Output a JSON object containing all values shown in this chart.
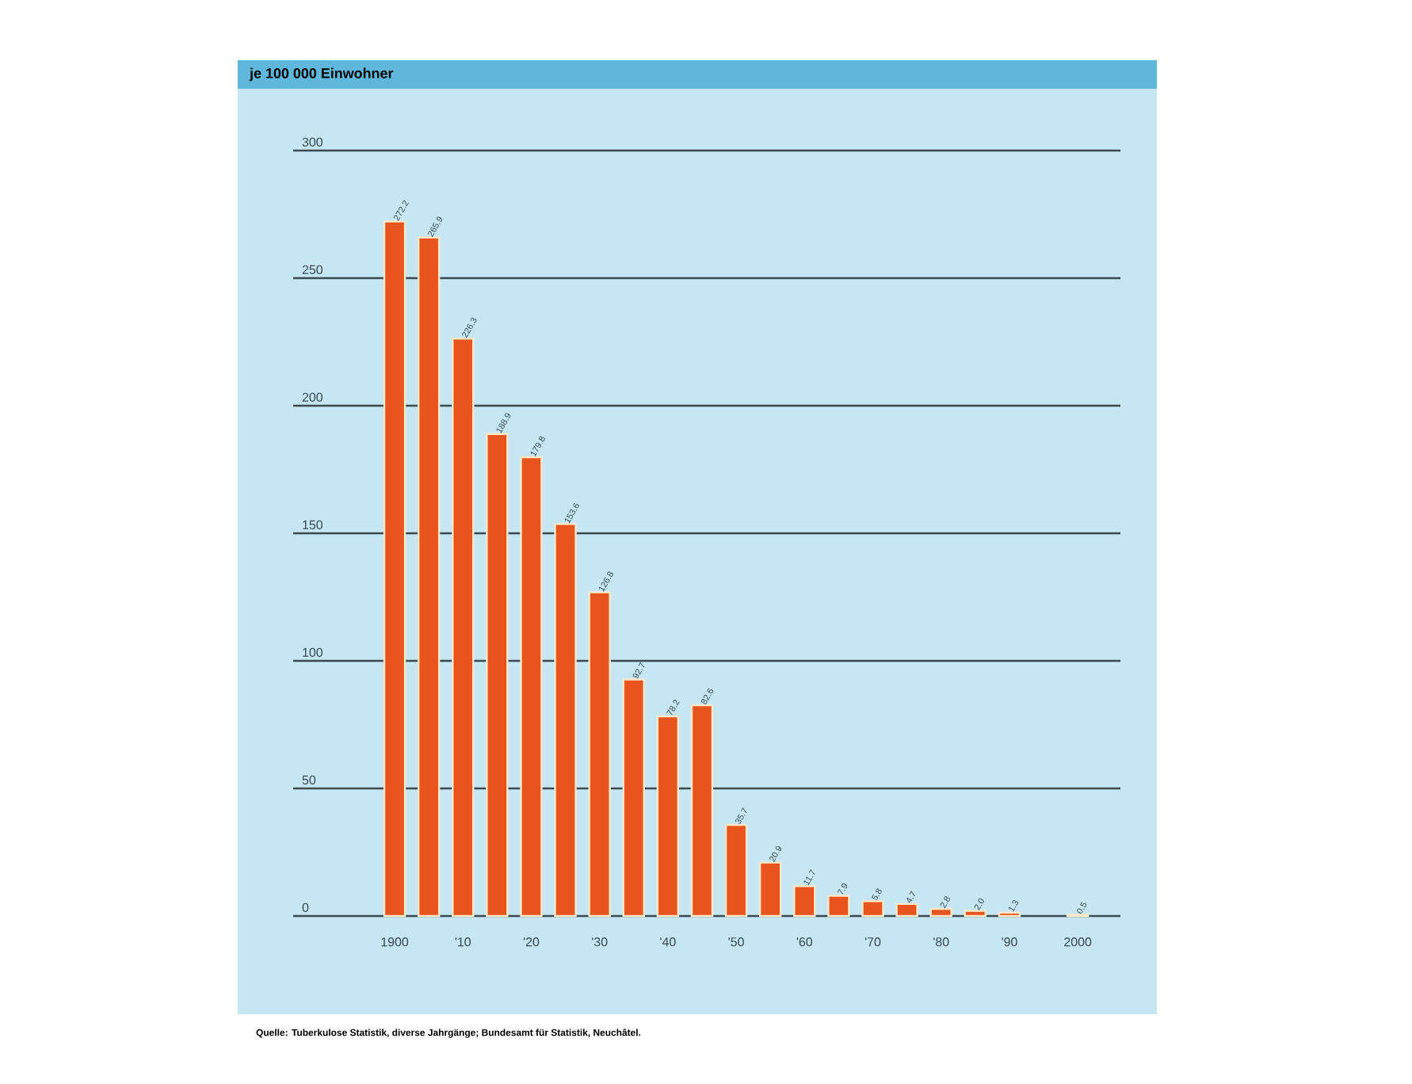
{
  "chart_data": {
    "type": "bar",
    "title": "je 100 000 Einwohner",
    "categories": [
      "1900",
      null,
      "'10",
      null,
      "'20",
      null,
      "'30",
      null,
      "'40",
      null,
      "'50",
      null,
      "'60",
      null,
      "'70",
      null,
      "'80",
      null,
      "'90",
      null,
      "2000"
    ],
    "values": [
      272.2,
      265.9,
      226.3,
      188.9,
      179.8,
      153.6,
      126.8,
      92.7,
      78.2,
      82.6,
      35.7,
      20.9,
      11.7,
      7.9,
      5.8,
      4.7,
      2.8,
      2.0,
      1.3,
      null,
      0.5
    ],
    "value_labels": [
      "272.2",
      "265.9",
      "226.3",
      "188.9",
      "179.8",
      "153.6",
      "126.8",
      "92.7",
      "78.2",
      "82.6",
      "35.7",
      "20.9",
      "11.7",
      "7.9",
      "5.8",
      "4.7",
      "2.8",
      "2.0",
      "1.3",
      null,
      "0.5"
    ],
    "color": "#e8541e",
    "grid": "y",
    "ylim": [
      0,
      300
    ],
    "yticks": [
      0,
      50,
      100,
      150,
      200,
      250,
      300
    ],
    "annotations": [
      "Quelle: Tuberkulose Statistik, diverse Jahrgänge; Bundesamt für Statistik, Neuchâtel."
    ]
  }
}
